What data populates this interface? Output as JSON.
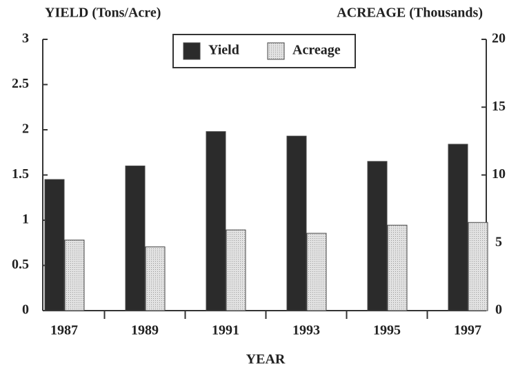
{
  "chart_data": {
    "type": "bar",
    "ylabel": "YIELD (Tons/Acre)",
    "y2label": "ACREAGE (Thousands)",
    "xlabel": "YEAR",
    "categories": [
      "1987",
      "1989",
      "1991",
      "1993",
      "1995",
      "1997"
    ],
    "series": [
      {
        "name": "Yield",
        "color": "#2b2b2b",
        "values": [
          1.45,
          1.6,
          1.98,
          1.93,
          1.65,
          1.84
        ]
      },
      {
        "name": "Acreage",
        "color": "#dcdcdc",
        "axis": "y2",
        "values": [
          5.2,
          4.7,
          5.95,
          5.7,
          6.3,
          6.5
        ]
      }
    ],
    "ylim": [
      0,
      3
    ],
    "yticks": [
      0,
      0.5,
      1,
      1.5,
      2,
      2.5,
      3
    ],
    "y2lim": [
      0,
      20
    ],
    "y2ticks": [
      0,
      5,
      10,
      15,
      20
    ],
    "grid": false,
    "legend": "top"
  }
}
